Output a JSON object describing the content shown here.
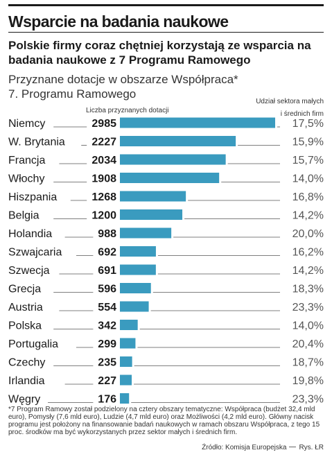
{
  "header": {
    "title": "Wsparcie na badania naukowe",
    "subtitle": "Polskie firmy coraz chętniej korzystają ze wsparcia na badania naukowe z 7 Programu Ramowego"
  },
  "chart_data": {
    "type": "bar",
    "title": "Przyznane dotacje w obszarze Współpraca* 7. Programu Ramowego",
    "title_line1": "Przyznane dotacje w obszarze Współpraca*",
    "title_line2": "7. Programu Ramowego",
    "count_label": "Liczba przyznanych dotacji",
    "share_label_line1": "Udział sektora małych",
    "share_label_line2": "i średnich firm",
    "categories": [
      "Niemcy",
      "W. Brytania",
      "Francja",
      "Włochy",
      "Hiszpania",
      "Belgia",
      "Holandia",
      "Szwajcaria",
      "Szwecja",
      "Grecja",
      "Austria",
      "Polska",
      "Portugalia",
      "Czechy",
      "Irlandia",
      "Węgry"
    ],
    "series": [
      {
        "values": [
          2985,
          2227,
          2034,
          1908,
          1268,
          1200,
          988,
          692,
          691,
          596,
          554,
          342,
          299,
          235,
          227,
          176
        ]
      }
    ],
    "value_labels": [
      "2985",
      "2227",
      "2034",
      "1908",
      "1268",
      "1200",
      "988",
      "692",
      "691",
      "596",
      "554",
      "342",
      "299",
      "235",
      "227",
      "176"
    ],
    "sme_share": [
      "17,5%",
      "15,9%",
      "15,7%",
      "14,0%",
      "16,8%",
      "14,2%",
      "20,0%",
      "16,2%",
      "14,2%",
      "18,3%",
      "23,3%",
      "14,0%",
      "20,4%",
      "18,7%",
      "19,8%",
      "23,3%"
    ],
    "xlim": [
      0,
      2985
    ],
    "bar_color": "#3a9bbf",
    "grid": false
  },
  "footnote": "*7 Program Ramowy został podzielony na cztery obszary tematyczne: Współpraca (budżet 32,4 mld euro), Pomysły (7,6 mld euro), Ludzie (4,7 mld euro) oraz Możliwości (4,2 mld euro). Główny nacisk programu jest położony na finansowanie badań naukowych w ramach obszaru Współpraca, z tego 15 proc. środków ma być wykorzystanych przez sektor małych i średnich firm.",
  "source": {
    "text": "Źródło: Komisja Europejska",
    "credit": "Rys. ŁR"
  }
}
